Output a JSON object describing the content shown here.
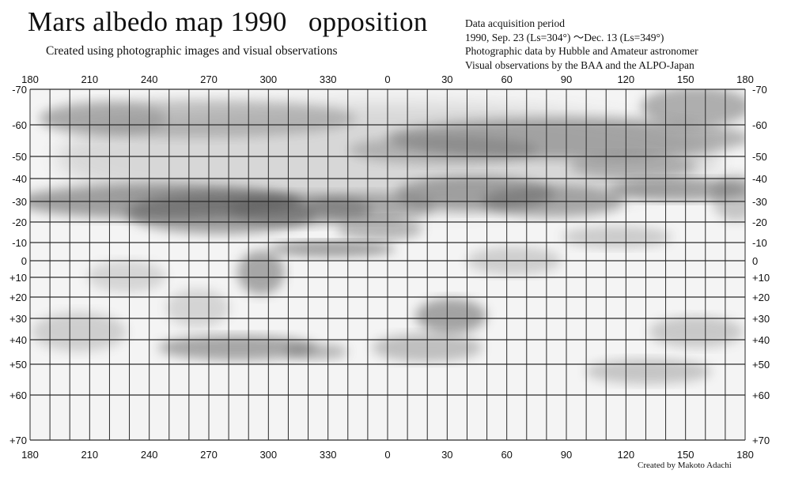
{
  "title": "Mars albedo map 1990   opposition",
  "subtitle": "Created using photographic images and visual observations",
  "info": [
    "Data acquisition period",
    "1990, Sep. 23 (Ls=304°) ～Dec. 13 (Ls=349°)",
    "Photographic data by Hubble and Amateur astronomer",
    "Visual observations by the BAA and the ALPO-Japan"
  ],
  "credit": "Created by Makoto Adachi",
  "map": {
    "longitude_labels": [
      "180",
      "210",
      "240",
      "270",
      "300",
      "330",
      "0",
      "30",
      "60",
      "90",
      "120",
      "150",
      "180"
    ],
    "latitude_labels": [
      "-70",
      "-60",
      "-50",
      "-40",
      "-30",
      "-20",
      "-10",
      "0",
      "+10",
      "+20",
      "+30",
      "+40",
      "+50",
      "+60",
      "+70"
    ],
    "grid_color": "#2a2a2a",
    "shading_color": "#5a5a5a"
  }
}
